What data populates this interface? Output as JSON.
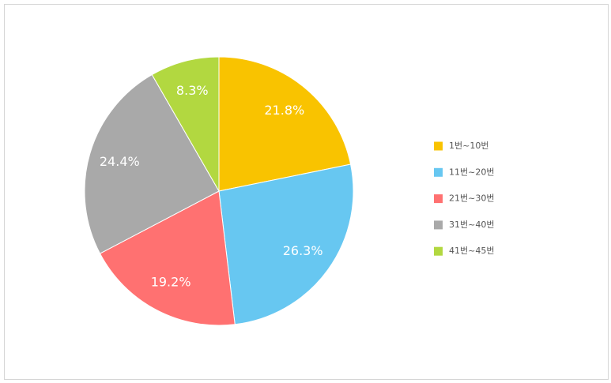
{
  "chart_data": {
    "type": "pie",
    "categories": [
      "1번~10번",
      "11번~20번",
      "21번~30번",
      "31번~40번",
      "41번~45번"
    ],
    "values": [
      21.8,
      26.3,
      19.2,
      24.4,
      8.3
    ],
    "value_labels": [
      "21.8%",
      "26.3%",
      "19.2%",
      "24.4%",
      "8.3%"
    ],
    "colors": [
      "#f9c300",
      "#67c7f1",
      "#ff7171",
      "#a9a9a9",
      "#b2d840"
    ],
    "legend": "right"
  }
}
